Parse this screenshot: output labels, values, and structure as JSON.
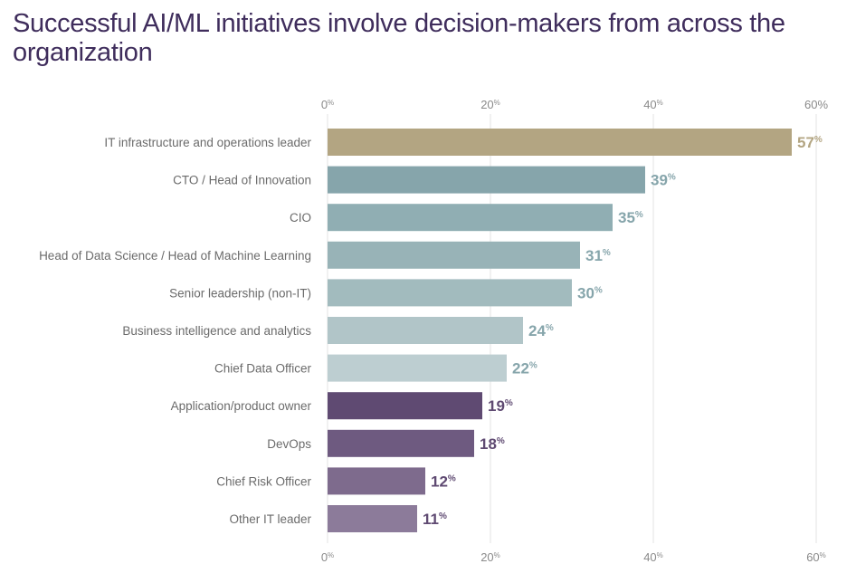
{
  "chart_data": {
    "type": "bar",
    "orientation": "horizontal",
    "title": "Successful AI/ML initiatives involve decision-makers from across the organization",
    "categories": [
      "IT infrastructure and operations leader",
      "CTO / Head of Innovation",
      "CIO",
      "Head of Data Science / Head of Machine Learning",
      "Senior leadership (non-IT)",
      "Business intelligence and analytics",
      "Chief Data Officer",
      "Application/product owner",
      "DevOps",
      "Chief Risk Officer",
      "Other IT leader"
    ],
    "values": [
      57,
      39,
      35,
      31,
      30,
      24,
      22,
      19,
      18,
      12,
      11
    ],
    "value_labels": [
      "57",
      "39",
      "35",
      "31",
      "30",
      "24",
      "22",
      "19",
      "18",
      "12",
      "11"
    ],
    "value_suffix": "%",
    "bar_colors": [
      "#b3a582",
      "#86a5ab",
      "#90aeb3",
      "#98b3b7",
      "#a2bbbe",
      "#b1c5c8",
      "#bdced1",
      "#5f4a72",
      "#6e5a80",
      "#7e6b8d",
      "#8c7b9a"
    ],
    "label_colors": [
      "#b3a582",
      "#86a5ab",
      "#86a5ab",
      "#86a5ab",
      "#86a5ab",
      "#86a5ab",
      "#86a5ab",
      "#5f4a72",
      "#5f4a72",
      "#5f4a72",
      "#5f4a72"
    ],
    "xlim": [
      0,
      60
    ],
    "ticks": [
      0,
      20,
      40,
      60
    ],
    "ticks_top": [
      "0",
      "20",
      "40",
      "60%"
    ],
    "ticks_top_suffix": [
      "%",
      "%",
      "%",
      ""
    ],
    "ticks_bottom": [
      "0",
      "20",
      "40",
      "60"
    ],
    "ticks_bottom_suffix": [
      "%",
      "%",
      "%",
      "%"
    ],
    "grid": true,
    "legend": "none",
    "xlabel": "",
    "ylabel": ""
  }
}
